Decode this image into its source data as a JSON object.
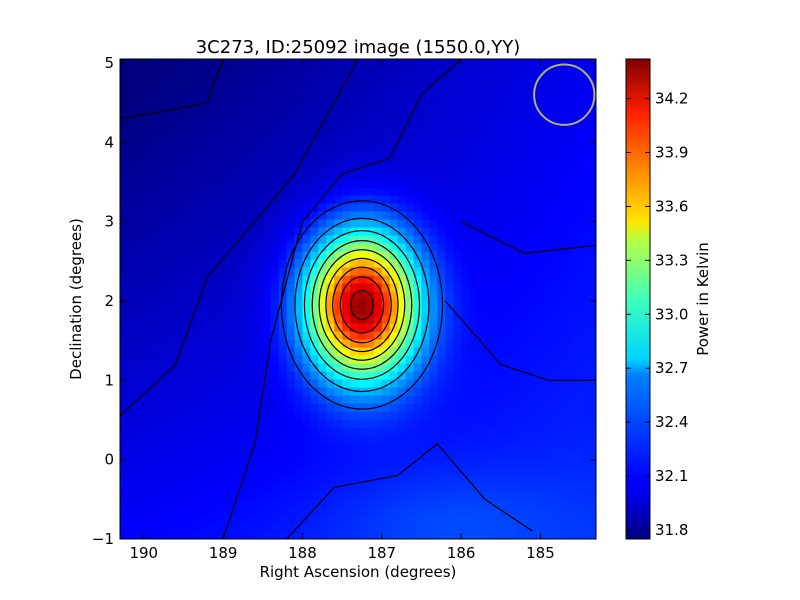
{
  "chart_data": {
    "type": "heatmap",
    "title": "3C273, ID:25092 image (1550.0,YY)",
    "xlabel": "Right Ascension (degrees)",
    "ylabel": "Declination (degrees)",
    "xlim": [
      190.3,
      184.3
    ],
    "ylim": [
      -1,
      5.05
    ],
    "x_ticks": [
      190,
      189,
      188,
      187,
      186,
      185
    ],
    "y_ticks": [
      -1,
      0,
      1,
      2,
      3,
      4,
      5
    ],
    "colorbar": {
      "label": "Power in Kelvin",
      "range": [
        31.75,
        34.42
      ],
      "ticks": [
        "31.8",
        "32.1",
        "32.4",
        "32.7",
        "33.0",
        "33.3",
        "33.6",
        "33.9",
        "34.2"
      ],
      "colormap": "jet"
    },
    "source_peak": {
      "ra": 187.25,
      "dec": 1.95,
      "value": 34.4
    },
    "beam_marker": {
      "ra": 184.7,
      "dec": 4.6,
      "radius_deg": 0.38,
      "color": "#b0b070"
    },
    "contours": true
  }
}
